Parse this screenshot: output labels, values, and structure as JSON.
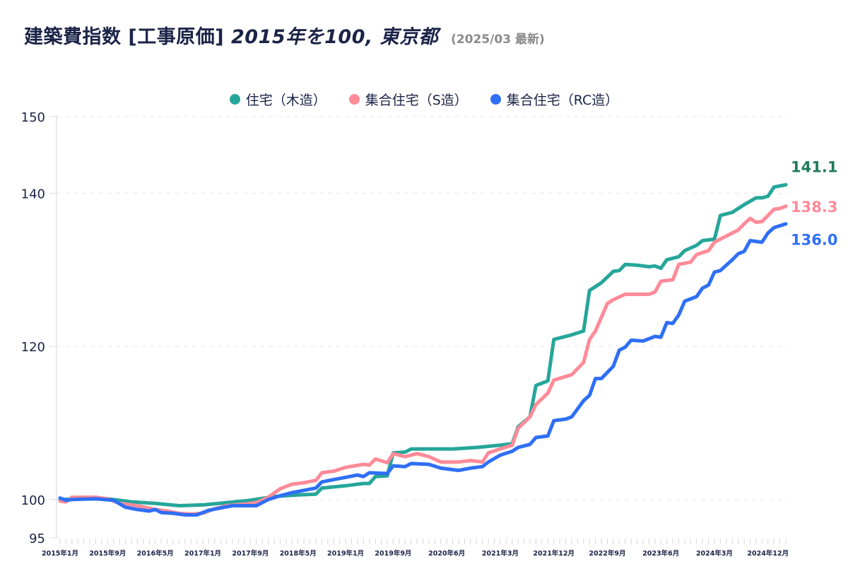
{
  "chart_data": {
    "type": "line",
    "title": "建築費指数 [工事原価]",
    "title_italic": "2015年を100, 東京都",
    "subtitle": "(2025/03 最新)",
    "xlabel": "",
    "ylabel": "",
    "ylim": [
      95,
      150
    ],
    "y_ticks": [
      "95",
      "100",
      "120",
      "140",
      "150"
    ],
    "y_tick_values": [
      95,
      100,
      120,
      140,
      150
    ],
    "x_start": "2015-01",
    "x_end": "2025-03",
    "x_month_count": 123,
    "x_tick_labels": [
      "2015年1月",
      "2015年9月",
      "2016年5月",
      "2017年1月",
      "2017年9月",
      "2018年5月",
      "2019年1月",
      "2019年9月",
      "2020年6月",
      "2021年3月",
      "2021年12月",
      "2022年9月",
      "2023年6月",
      "2024年3月",
      "2024年12月"
    ],
    "x_tick_month_index": [
      0,
      8,
      16,
      24,
      32,
      40,
      48,
      56,
      65,
      74,
      83,
      92,
      101,
      110,
      119
    ],
    "grid": true,
    "legend_position": "top-center",
    "series": [
      {
        "name": "住宅（木造）",
        "color": "#26a69a",
        "label_color": "#1f7a5c",
        "end_label": "141.1",
        "points": [
          [
            0,
            100.0
          ],
          [
            4,
            100.1
          ],
          [
            8,
            100.1
          ],
          [
            12,
            99.7
          ],
          [
            16,
            99.5
          ],
          [
            20,
            99.2
          ],
          [
            24,
            99.3
          ],
          [
            28,
            99.6
          ],
          [
            32,
            99.9
          ],
          [
            36,
            100.4
          ],
          [
            40,
            100.6
          ],
          [
            43,
            100.7
          ],
          [
            44,
            101.5
          ],
          [
            48,
            101.8
          ],
          [
            51,
            102.1
          ],
          [
            52,
            102.1
          ],
          [
            53,
            103.0
          ],
          [
            55,
            103.1
          ],
          [
            56,
            106.1
          ],
          [
            58,
            106.2
          ],
          [
            59,
            106.6
          ],
          [
            62,
            106.6
          ],
          [
            66,
            106.6
          ],
          [
            70,
            106.8
          ],
          [
            74,
            107.1
          ],
          [
            76,
            107.3
          ],
          [
            77,
            109.5
          ],
          [
            79,
            110.8
          ],
          [
            80,
            114.9
          ],
          [
            82,
            115.5
          ],
          [
            83,
            120.9
          ],
          [
            86,
            121.5
          ],
          [
            88,
            122.0
          ],
          [
            89,
            127.3
          ],
          [
            91,
            128.3
          ],
          [
            93,
            129.8
          ],
          [
            94,
            129.9
          ],
          [
            95,
            130.7
          ],
          [
            97,
            130.6
          ],
          [
            99,
            130.4
          ],
          [
            100,
            130.5
          ],
          [
            101,
            130.2
          ],
          [
            102,
            131.3
          ],
          [
            104,
            131.7
          ],
          [
            105,
            132.5
          ],
          [
            107,
            133.2
          ],
          [
            108,
            133.8
          ],
          [
            110,
            134.0
          ],
          [
            111,
            137.1
          ],
          [
            113,
            137.5
          ],
          [
            114,
            138.0
          ],
          [
            115,
            138.5
          ],
          [
            117,
            139.4
          ],
          [
            118,
            139.4
          ],
          [
            119,
            139.6
          ],
          [
            120,
            140.8
          ],
          [
            122,
            141.1
          ]
        ]
      },
      {
        "name": "集合住宅（S造）",
        "color": "#ff8a98",
        "label_color": "#ff8a98",
        "end_label": "138.3",
        "points": [
          [
            0,
            99.8
          ],
          [
            1,
            99.7
          ],
          [
            2,
            100.3
          ],
          [
            6,
            100.3
          ],
          [
            8,
            100.1
          ],
          [
            10,
            99.5
          ],
          [
            13,
            99.2
          ],
          [
            16,
            98.7
          ],
          [
            18,
            98.5
          ],
          [
            20,
            98.2
          ],
          [
            22,
            98.1
          ],
          [
            24,
            98.2
          ],
          [
            26,
            98.8
          ],
          [
            28,
            99.2
          ],
          [
            31,
            99.4
          ],
          [
            33,
            99.6
          ],
          [
            35,
            100.3
          ],
          [
            37,
            101.4
          ],
          [
            39,
            102.0
          ],
          [
            41,
            102.2
          ],
          [
            43,
            102.5
          ],
          [
            44,
            103.5
          ],
          [
            46,
            103.7
          ],
          [
            48,
            104.2
          ],
          [
            51,
            104.6
          ],
          [
            52,
            104.5
          ],
          [
            53,
            105.3
          ],
          [
            55,
            104.8
          ],
          [
            56,
            106.0
          ],
          [
            58,
            105.6
          ],
          [
            60,
            106.0
          ],
          [
            62,
            105.6
          ],
          [
            64,
            104.9
          ],
          [
            67,
            104.9
          ],
          [
            69,
            105.1
          ],
          [
            71,
            104.9
          ],
          [
            72,
            106.1
          ],
          [
            74,
            106.6
          ],
          [
            76,
            107.1
          ],
          [
            77,
            109.3
          ],
          [
            79,
            110.8
          ],
          [
            80,
            112.4
          ],
          [
            82,
            113.9
          ],
          [
            83,
            115.6
          ],
          [
            86,
            116.3
          ],
          [
            88,
            117.9
          ],
          [
            89,
            120.9
          ],
          [
            90,
            122.0
          ],
          [
            92,
            125.6
          ],
          [
            93,
            126.1
          ],
          [
            95,
            126.8
          ],
          [
            97,
            126.8
          ],
          [
            99,
            126.8
          ],
          [
            100,
            127.1
          ],
          [
            101,
            128.5
          ],
          [
            102,
            128.6
          ],
          [
            103,
            128.7
          ],
          [
            104,
            130.7
          ],
          [
            106,
            131.0
          ],
          [
            107,
            132.0
          ],
          [
            109,
            132.5
          ],
          [
            110,
            133.6
          ],
          [
            112,
            134.4
          ],
          [
            114,
            135.2
          ],
          [
            115,
            136.0
          ],
          [
            116,
            136.7
          ],
          [
            117,
            136.2
          ],
          [
            118,
            136.3
          ],
          [
            120,
            137.9
          ],
          [
            121,
            138.0
          ],
          [
            122,
            138.3
          ]
        ]
      },
      {
        "name": "集合住宅（RC造）",
        "color": "#2f6ff5",
        "label_color": "#2f6ff5",
        "end_label": "136.0",
        "points": [
          [
            0,
            100.2
          ],
          [
            1,
            99.9
          ],
          [
            2,
            100.0
          ],
          [
            6,
            100.1
          ],
          [
            9,
            99.9
          ],
          [
            11,
            99.0
          ],
          [
            13,
            98.7
          ],
          [
            15,
            98.5
          ],
          [
            16,
            98.7
          ],
          [
            17,
            98.3
          ],
          [
            19,
            98.2
          ],
          [
            21,
            98.0
          ],
          [
            23,
            98.0
          ],
          [
            25,
            98.6
          ],
          [
            27,
            98.9
          ],
          [
            29,
            99.2
          ],
          [
            33,
            99.2
          ],
          [
            35,
            100.0
          ],
          [
            37,
            100.5
          ],
          [
            39,
            100.9
          ],
          [
            41,
            101.2
          ],
          [
            43,
            101.5
          ],
          [
            44,
            102.3
          ],
          [
            46,
            102.6
          ],
          [
            48,
            102.9
          ],
          [
            50,
            103.2
          ],
          [
            51,
            103.0
          ],
          [
            52,
            103.5
          ],
          [
            55,
            103.4
          ],
          [
            56,
            104.4
          ],
          [
            58,
            104.3
          ],
          [
            59,
            104.7
          ],
          [
            62,
            104.6
          ],
          [
            64,
            104.1
          ],
          [
            67,
            103.8
          ],
          [
            69,
            104.1
          ],
          [
            71,
            104.3
          ],
          [
            72,
            104.9
          ],
          [
            74,
            105.8
          ],
          [
            76,
            106.3
          ],
          [
            77,
            106.8
          ],
          [
            79,
            107.2
          ],
          [
            80,
            108.1
          ],
          [
            82,
            108.3
          ],
          [
            83,
            110.3
          ],
          [
            85,
            110.5
          ],
          [
            86,
            110.8
          ],
          [
            88,
            112.9
          ],
          [
            89,
            113.6
          ],
          [
            90,
            115.8
          ],
          [
            91,
            115.8
          ],
          [
            93,
            117.4
          ],
          [
            94,
            119.5
          ],
          [
            95,
            119.9
          ],
          [
            96,
            120.8
          ],
          [
            98,
            120.7
          ],
          [
            99,
            121.0
          ],
          [
            100,
            121.3
          ],
          [
            101,
            121.2
          ],
          [
            102,
            123.1
          ],
          [
            103,
            123.0
          ],
          [
            104,
            124.1
          ],
          [
            105,
            125.9
          ],
          [
            107,
            126.5
          ],
          [
            108,
            127.6
          ],
          [
            109,
            128.0
          ],
          [
            110,
            129.7
          ],
          [
            111,
            129.9
          ],
          [
            113,
            131.3
          ],
          [
            114,
            132.1
          ],
          [
            115,
            132.4
          ],
          [
            116,
            133.8
          ],
          [
            117,
            133.7
          ],
          [
            118,
            133.6
          ],
          [
            119,
            134.8
          ],
          [
            120,
            135.5
          ],
          [
            122,
            136.0
          ]
        ]
      }
    ]
  }
}
